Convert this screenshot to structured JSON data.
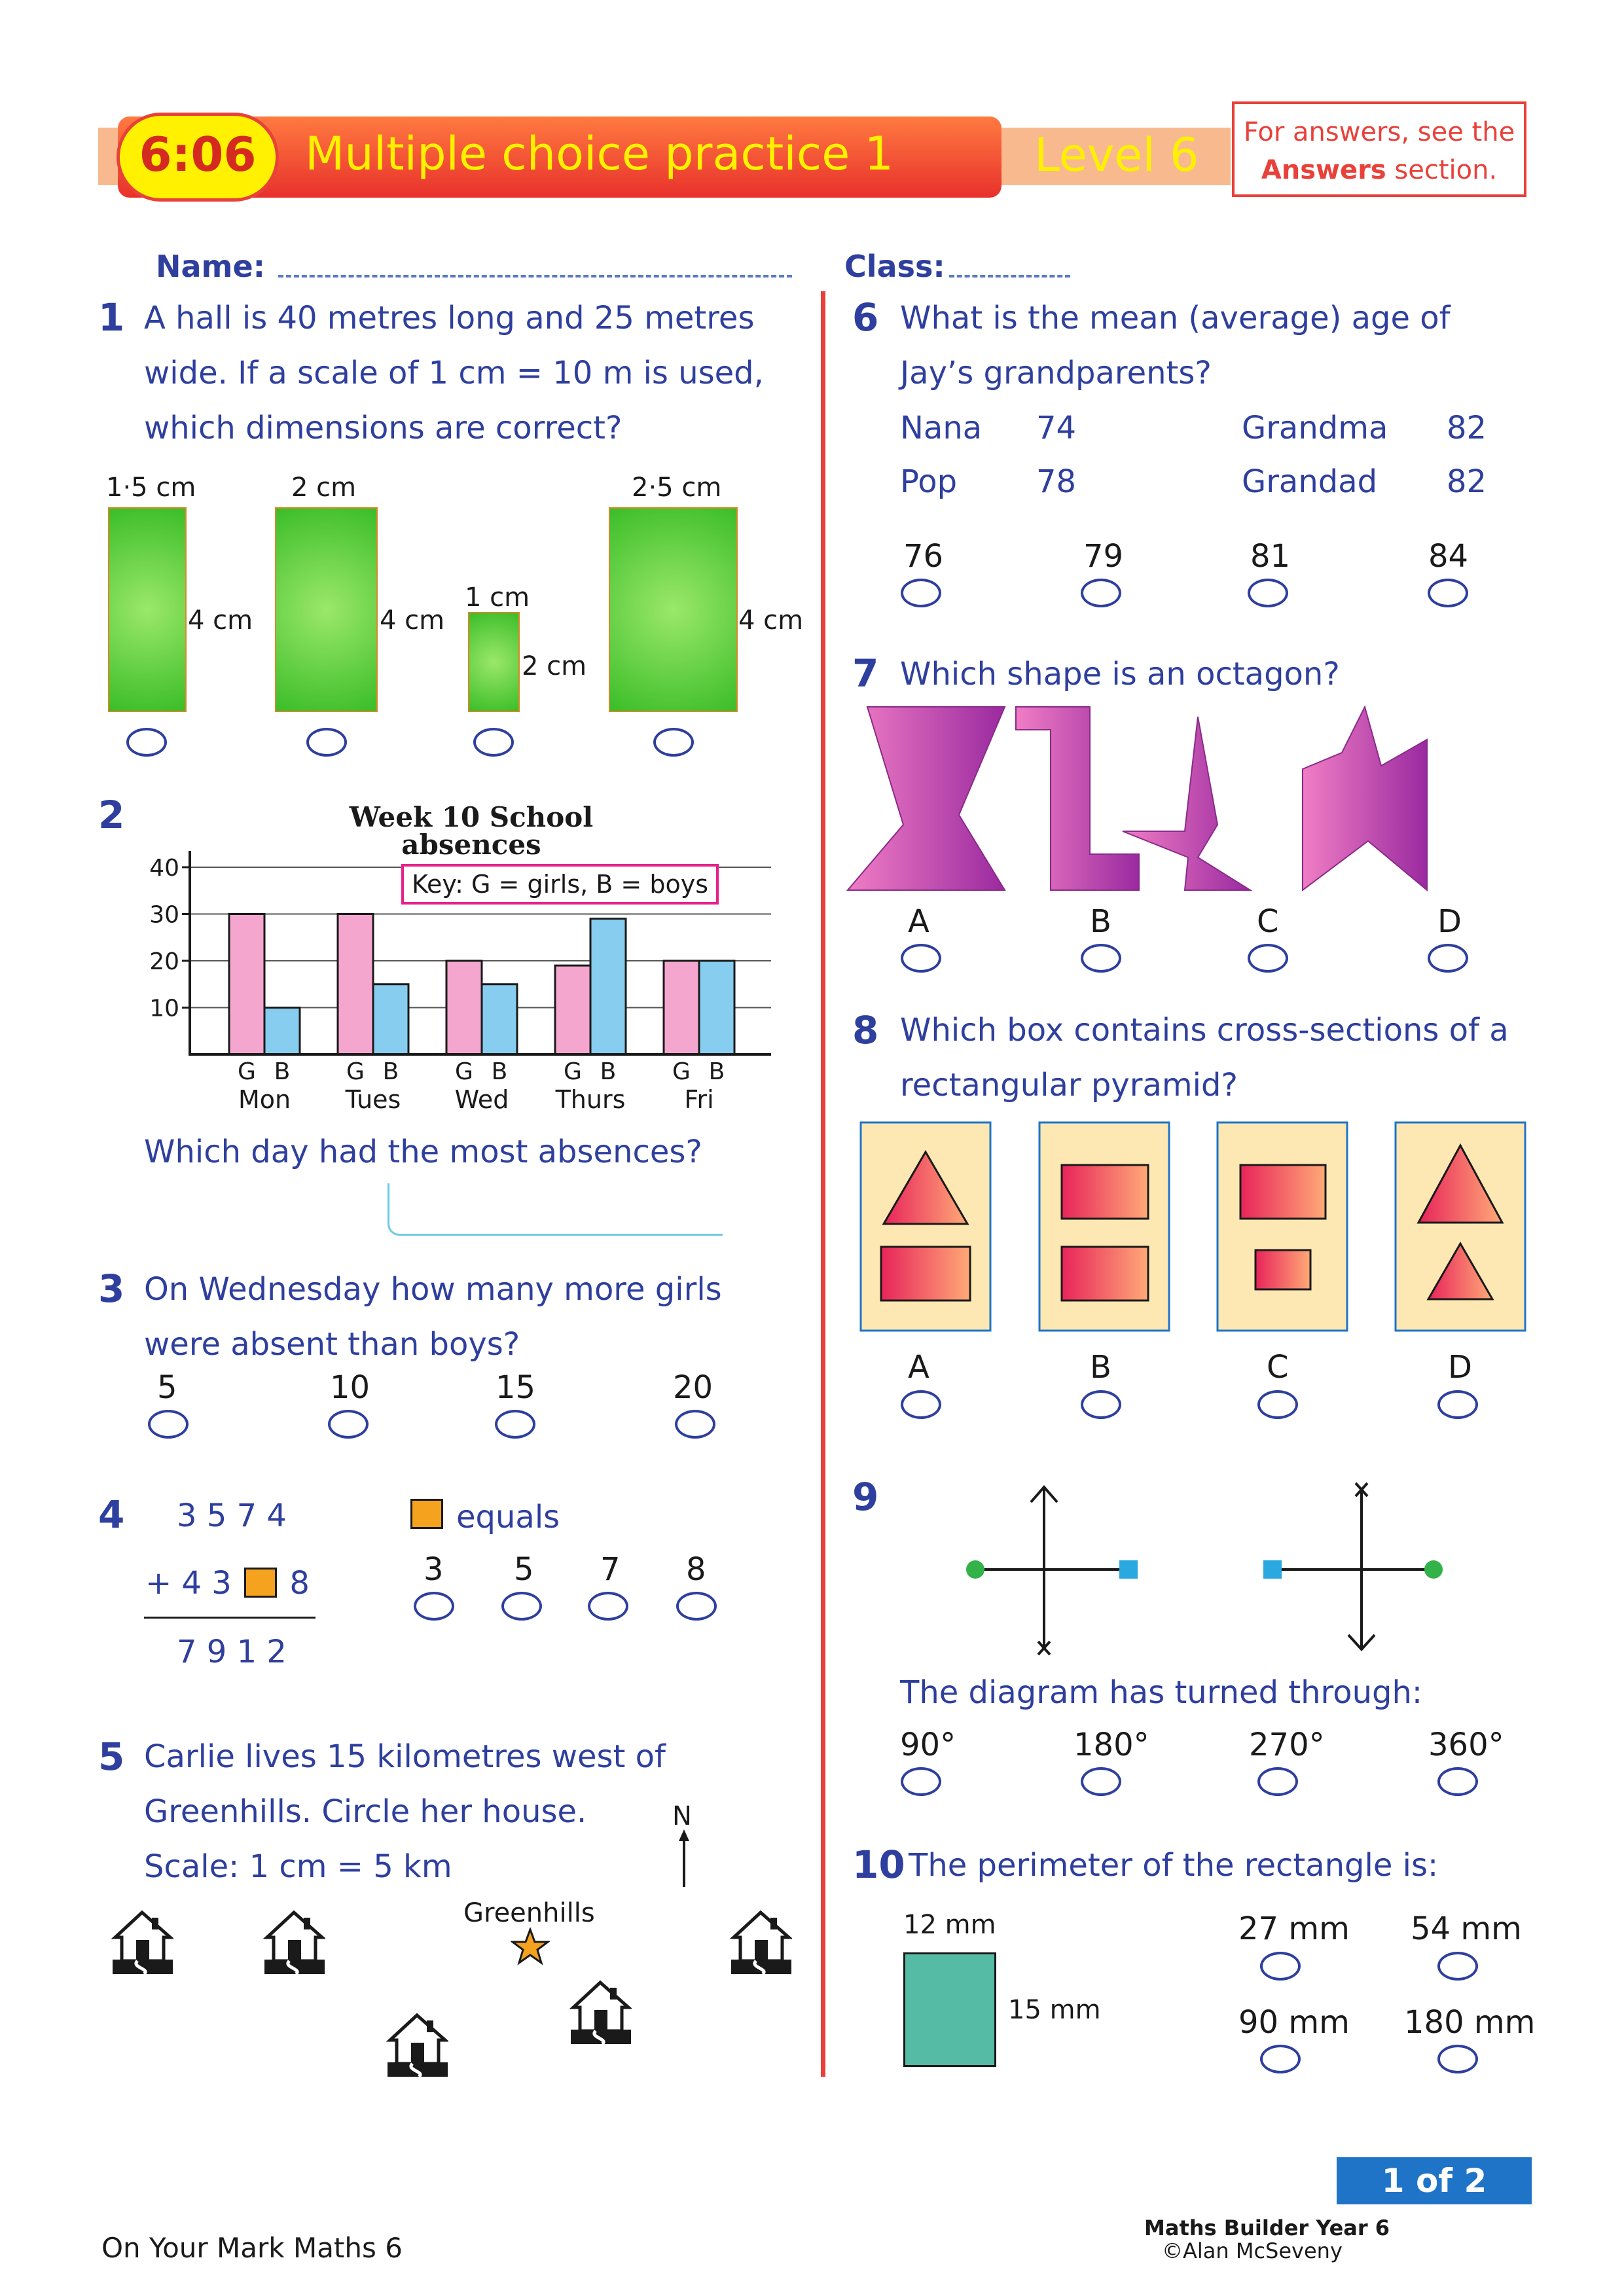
{
  "header": {
    "code": "6:06",
    "title": "Multiple choice practice 1",
    "level": "Level 6",
    "answers_note_pre": "For answers, see the",
    "answers_note_bold": "Answers",
    "answers_note_post": "section."
  },
  "form": {
    "name_label": "Name:",
    "class_label": "Class:"
  },
  "q1": {
    "num": "1",
    "lines": [
      "A hall is 40 metres long and 25 metres",
      "wide. If a scale of 1 cm = 10 m is used,",
      "which dimensions are correct?"
    ],
    "options": [
      {
        "width": "1·5 cm",
        "height": "4 cm"
      },
      {
        "width": "2 cm",
        "height": "4 cm"
      },
      {
        "width": "1 cm",
        "height": "2 cm"
      },
      {
        "width": "2·5 cm",
        "height": "4 cm"
      }
    ]
  },
  "q2": {
    "num": "2",
    "question": "Which day had the most absences?"
  },
  "chart_data": {
    "type": "bar",
    "title": "Week 10 School absences",
    "categories": [
      "Mon",
      "Tues",
      "Wed",
      "Thurs",
      "Fri"
    ],
    "series": [
      {
        "name": "G",
        "values": [
          30,
          30,
          20,
          19,
          20
        ]
      },
      {
        "name": "B",
        "values": [
          10,
          15,
          15,
          29,
          20
        ]
      }
    ],
    "ylim": [
      0,
      40
    ],
    "yticks": [
      "40",
      "30",
      "20",
      "10"
    ],
    "bar_labels": [
      "G",
      "B"
    ],
    "key": "Key: G = girls,  B = boys",
    "colors": {
      "girls": "#f4a6cf",
      "boys": "#86cdf0"
    }
  },
  "q3": {
    "num": "3",
    "lines": [
      "On Wednesday how many more girls",
      "were absent than boys?"
    ],
    "options": [
      "5",
      "10",
      "15",
      "20"
    ]
  },
  "q4": {
    "num": "4",
    "row1": "3 5 7 4",
    "row2_pre": "+ 4 3",
    "row2_post": "8",
    "row3": "7 9 1 2",
    "equals": "equals",
    "options": [
      "3",
      "5",
      "7",
      "8"
    ]
  },
  "q5": {
    "num": "5",
    "lines": [
      "Carlie lives 15 kilometres west of",
      "Greenhills. Circle her house.",
      "Scale: 1 cm = 5 km"
    ],
    "north": "N",
    "place": "Greenhills"
  },
  "q6": {
    "num": "6",
    "lines": [
      "What is the mean (average) age of",
      "Jay’s grandparents?"
    ],
    "people": [
      {
        "name": "Nana",
        "age": "74"
      },
      {
        "name": "Grandma",
        "age": "82"
      },
      {
        "name": "Pop",
        "age": "78"
      },
      {
        "name": "Grandad",
        "age": "82"
      }
    ],
    "options": [
      "76",
      "79",
      "81",
      "84"
    ]
  },
  "q7": {
    "num": "7",
    "question": "Which shape is an octagon?",
    "options": [
      "A",
      "B",
      "C",
      "D"
    ]
  },
  "q8": {
    "num": "8",
    "lines": [
      "Which box contains cross-sections of a",
      "rectangular pyramid?"
    ],
    "options": [
      "A",
      "B",
      "C",
      "D"
    ]
  },
  "q9": {
    "num": "9",
    "question": "The diagram has turned through:",
    "options": [
      "90°",
      "180°",
      "270°",
      "360°"
    ]
  },
  "q10": {
    "num": "10",
    "question": "The perimeter of the rectangle is:",
    "width": "12 mm",
    "height": "15 mm",
    "options": [
      "27 mm",
      "54 mm",
      "90 mm",
      "180 mm"
    ]
  },
  "footer": {
    "page": "1 of 2",
    "book": "Maths Builder Year 6",
    "copyright": "©Alan McSeveny",
    "series": "On Your Mark Maths 6"
  },
  "colors": {
    "accent": "#e8413a",
    "text": "#2e3f9e",
    "rect_green": "#58c53a",
    "teal": "#56bba4",
    "shape_pink": "#e277c0",
    "shape_purple": "#b23aa8"
  }
}
